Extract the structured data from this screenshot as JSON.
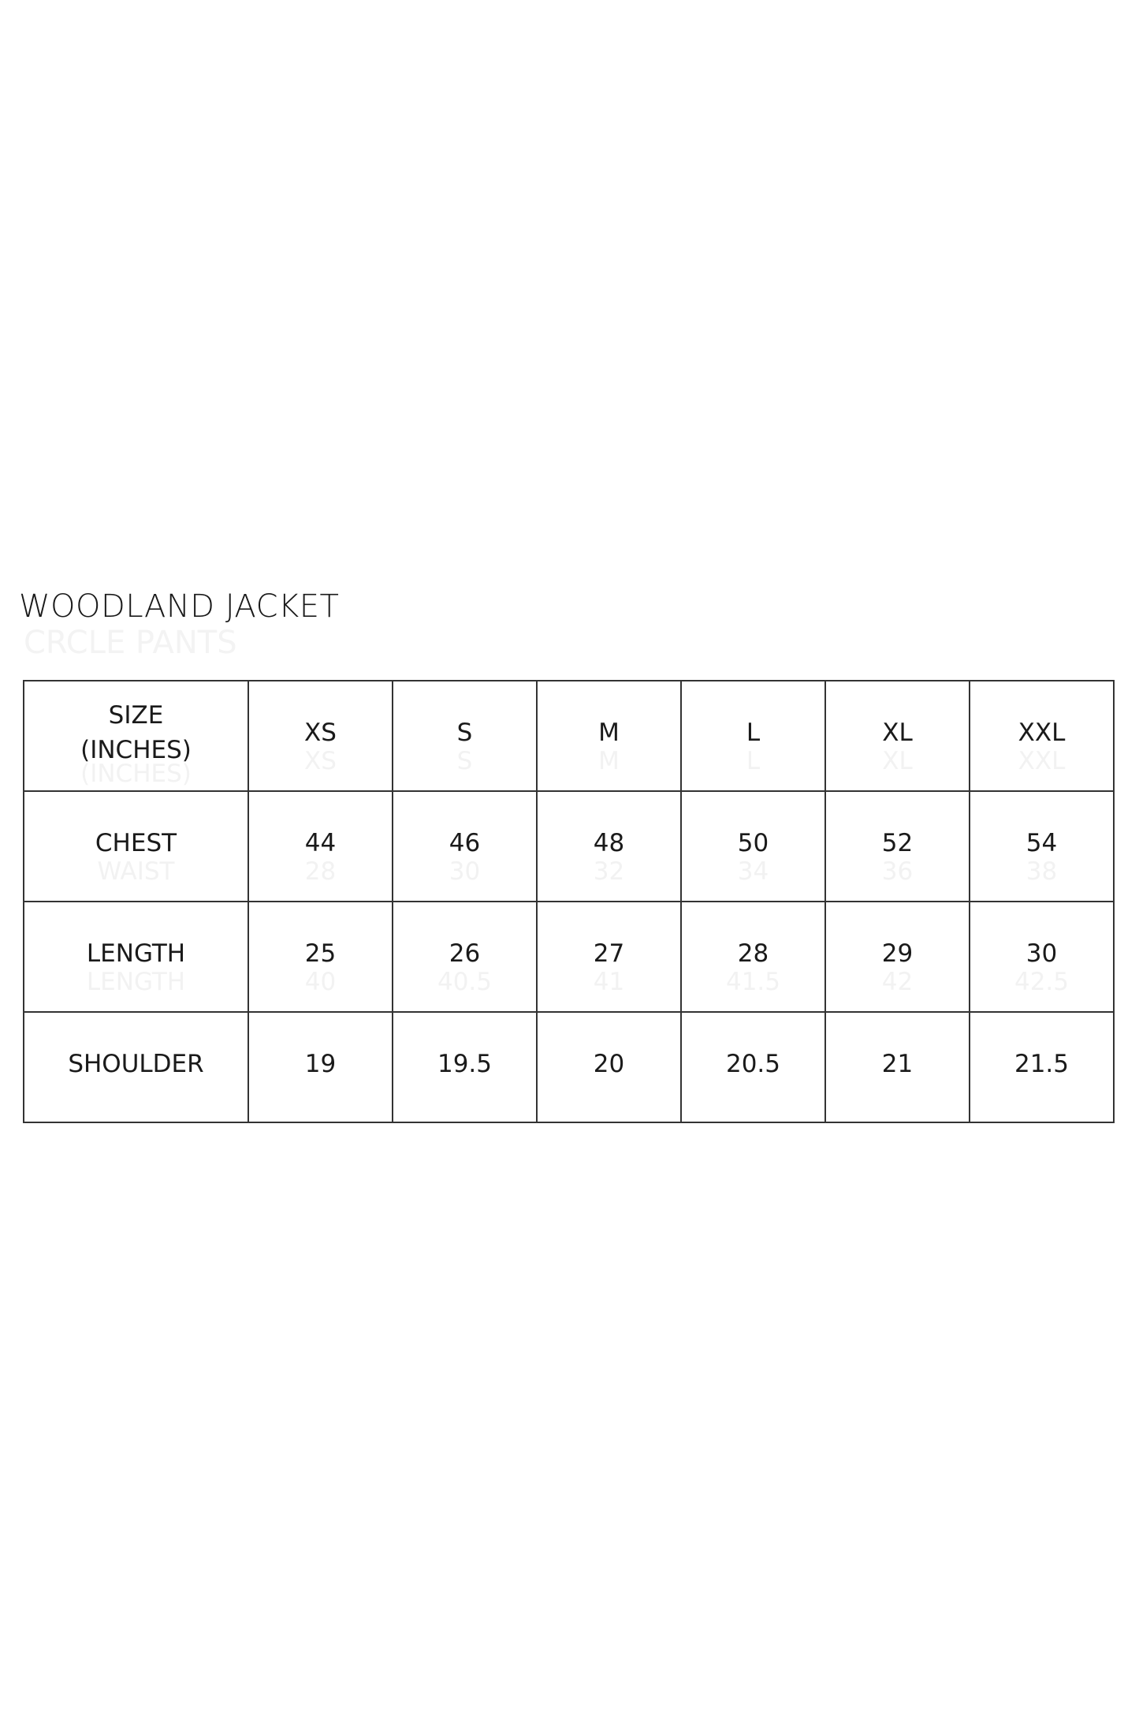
{
  "title": "WOODLAND JACKET",
  "ghost_title": "CRCLE PANTS",
  "table": {
    "header": {
      "label_lines": [
        "SIZE",
        "(INCHES)"
      ],
      "ghost": "(INCHES)",
      "sizes": [
        "XS",
        "S",
        "M",
        "L",
        "XL",
        "XXL"
      ]
    },
    "rows": [
      {
        "label": "CHEST",
        "ghost_label": "WAIST",
        "values": [
          "44",
          "46",
          "48",
          "50",
          "52",
          "54"
        ],
        "ghost_values": [
          "28",
          "30",
          "32",
          "34",
          "36",
          "38"
        ]
      },
      {
        "label": "LENGTH",
        "ghost_label": "LENGTH",
        "values": [
          "25",
          "26",
          "27",
          "28",
          "29",
          "30"
        ],
        "ghost_values": [
          "40",
          "40.5",
          "41",
          "41.5",
          "42",
          "42.5"
        ]
      },
      {
        "label": "SHOULDER",
        "ghost_label": "",
        "values": [
          "19",
          "19.5",
          "20",
          "20.5",
          "21",
          "21.5"
        ],
        "ghost_values": [
          "",
          "",
          "",
          "",
          "",
          ""
        ]
      }
    ]
  }
}
